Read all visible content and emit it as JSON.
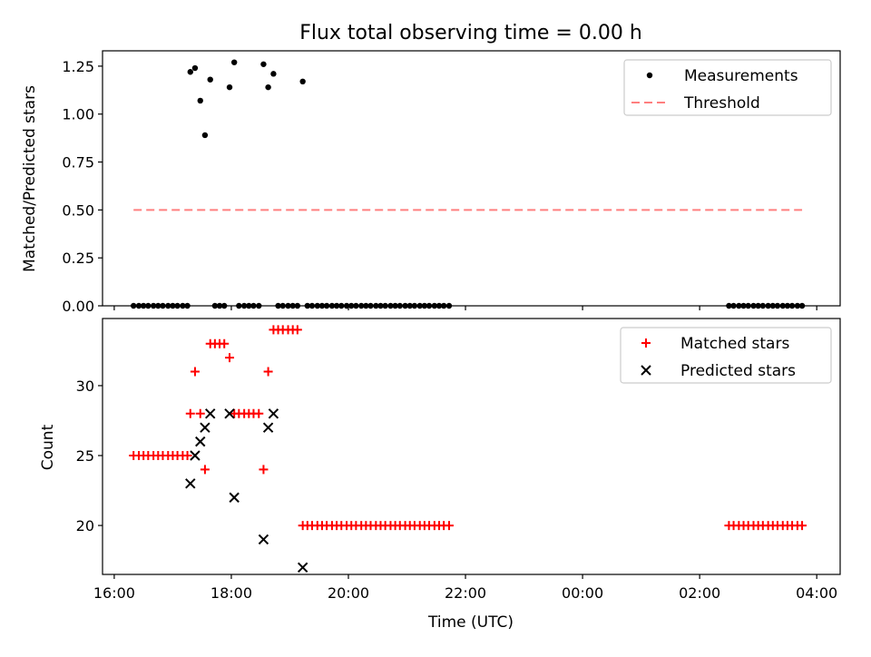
{
  "chart_data": [
    {
      "type": "scatter",
      "title": "Flux total observing time = 0.00 h",
      "xlabel": "",
      "ylabel": "Matched/Predicted stars",
      "x_unit": "hours since 16:00 UTC",
      "xlim": [
        -0.2,
        12.4
      ],
      "ylim": [
        0.0,
        1.33
      ],
      "yticks": [
        0.0,
        0.25,
        0.5,
        0.75,
        1.0,
        1.25
      ],
      "ytick_labels": [
        "0.00",
        "0.25",
        "0.50",
        "0.75",
        "1.00",
        "1.25"
      ],
      "legend": {
        "placement": "upper right",
        "entries": [
          {
            "label": "Measurements",
            "marker": "dot",
            "color": "#000000"
          },
          {
            "label": "Threshold",
            "marker": "dashed-line",
            "color": "#ff7f7f"
          }
        ]
      },
      "series": [
        {
          "name": "Measurements",
          "color": "#000000",
          "points": [
            [
              1.3,
              1.22
            ],
            [
              1.38,
              1.24
            ],
            [
              1.47,
              1.07
            ],
            [
              1.55,
              0.89
            ],
            [
              1.64,
              1.18
            ],
            [
              1.97,
              1.14
            ],
            [
              2.05,
              1.27
            ],
            [
              2.55,
              1.26
            ],
            [
              2.63,
              1.14
            ],
            [
              2.72,
              1.21
            ],
            [
              3.22,
              1.17
            ],
            [
              0.33,
              0.0
            ],
            [
              0.42,
              0.0
            ],
            [
              0.5,
              0.0
            ],
            [
              0.58,
              0.0
            ],
            [
              0.67,
              0.0
            ],
            [
              0.75,
              0.0
            ],
            [
              0.83,
              0.0
            ],
            [
              0.92,
              0.0
            ],
            [
              1.0,
              0.0
            ],
            [
              1.08,
              0.0
            ],
            [
              1.17,
              0.0
            ],
            [
              1.25,
              0.0
            ],
            [
              1.72,
              0.0
            ],
            [
              1.8,
              0.0
            ],
            [
              1.88,
              0.0
            ],
            [
              2.13,
              0.0
            ],
            [
              2.22,
              0.0
            ],
            [
              2.3,
              0.0
            ],
            [
              2.38,
              0.0
            ],
            [
              2.47,
              0.0
            ],
            [
              2.8,
              0.0
            ],
            [
              2.88,
              0.0
            ],
            [
              2.97,
              0.0
            ],
            [
              3.05,
              0.0
            ],
            [
              3.13,
              0.0
            ],
            [
              3.3,
              0.0
            ],
            [
              3.38,
              0.0
            ],
            [
              3.47,
              0.0
            ],
            [
              3.55,
              0.0
            ],
            [
              3.63,
              0.0
            ],
            [
              3.72,
              0.0
            ],
            [
              3.8,
              0.0
            ],
            [
              3.88,
              0.0
            ],
            [
              3.97,
              0.0
            ],
            [
              4.05,
              0.0
            ],
            [
              4.13,
              0.0
            ],
            [
              4.22,
              0.0
            ],
            [
              4.3,
              0.0
            ],
            [
              4.38,
              0.0
            ],
            [
              4.47,
              0.0
            ],
            [
              4.55,
              0.0
            ],
            [
              4.63,
              0.0
            ],
            [
              4.72,
              0.0
            ],
            [
              4.8,
              0.0
            ],
            [
              4.88,
              0.0
            ],
            [
              4.97,
              0.0
            ],
            [
              5.05,
              0.0
            ],
            [
              5.13,
              0.0
            ],
            [
              5.22,
              0.0
            ],
            [
              5.3,
              0.0
            ],
            [
              5.38,
              0.0
            ],
            [
              5.47,
              0.0
            ],
            [
              5.55,
              0.0
            ],
            [
              5.63,
              0.0
            ],
            [
              5.72,
              0.0
            ],
            [
              10.5,
              0.0
            ],
            [
              10.58,
              0.0
            ],
            [
              10.67,
              0.0
            ],
            [
              10.75,
              0.0
            ],
            [
              10.83,
              0.0
            ],
            [
              10.92,
              0.0
            ],
            [
              11.0,
              0.0
            ],
            [
              11.08,
              0.0
            ],
            [
              11.17,
              0.0
            ],
            [
              11.25,
              0.0
            ],
            [
              11.33,
              0.0
            ],
            [
              11.42,
              0.0
            ],
            [
              11.5,
              0.0
            ],
            [
              11.58,
              0.0
            ],
            [
              11.67,
              0.0
            ],
            [
              11.75,
              0.0
            ]
          ]
        },
        {
          "name": "Threshold",
          "color": "#ff7f7f",
          "line": [
            [
              0.33,
              0.5
            ],
            [
              11.75,
              0.5
            ]
          ]
        }
      ]
    },
    {
      "type": "scatter",
      "title": "",
      "xlabel": "Time (UTC)",
      "ylabel": "Count",
      "x_unit": "hours since 16:00 UTC",
      "xlim": [
        -0.2,
        12.4
      ],
      "ylim": [
        16.5,
        34.8
      ],
      "yticks": [
        20,
        25,
        30
      ],
      "ytick_labels": [
        "20",
        "25",
        "30"
      ],
      "xticks": [
        0,
        2,
        4,
        6,
        8,
        10,
        12
      ],
      "xtick_labels": [
        "16:00",
        "18:00",
        "20:00",
        "22:00",
        "00:00",
        "02:00",
        "04:00"
      ],
      "legend": {
        "placement": "upper right",
        "entries": [
          {
            "label": "Matched stars",
            "marker": "plus",
            "color": "#ff0000"
          },
          {
            "label": "Predicted stars",
            "marker": "x",
            "color": "#000000"
          }
        ]
      },
      "series": [
        {
          "name": "Matched stars",
          "color": "#ff0000",
          "points": [
            [
              0.33,
              25
            ],
            [
              0.42,
              25
            ],
            [
              0.5,
              25
            ],
            [
              0.58,
              25
            ],
            [
              0.67,
              25
            ],
            [
              0.75,
              25
            ],
            [
              0.83,
              25
            ],
            [
              0.92,
              25
            ],
            [
              1.0,
              25
            ],
            [
              1.08,
              25
            ],
            [
              1.17,
              25
            ],
            [
              1.25,
              25
            ],
            [
              1.3,
              28
            ],
            [
              1.38,
              31
            ],
            [
              1.47,
              28
            ],
            [
              1.55,
              24
            ],
            [
              1.64,
              33
            ],
            [
              1.72,
              33
            ],
            [
              1.8,
              33
            ],
            [
              1.88,
              33
            ],
            [
              1.97,
              32
            ],
            [
              2.05,
              28
            ],
            [
              2.13,
              28
            ],
            [
              2.22,
              28
            ],
            [
              2.3,
              28
            ],
            [
              2.38,
              28
            ],
            [
              2.47,
              28
            ],
            [
              2.55,
              24
            ],
            [
              2.63,
              31
            ],
            [
              2.72,
              34
            ],
            [
              2.8,
              34
            ],
            [
              2.88,
              34
            ],
            [
              2.97,
              34
            ],
            [
              3.05,
              34
            ],
            [
              3.13,
              34
            ],
            [
              3.22,
              20
            ],
            [
              3.3,
              20
            ],
            [
              3.38,
              20
            ],
            [
              3.47,
              20
            ],
            [
              3.55,
              20
            ],
            [
              3.63,
              20
            ],
            [
              3.72,
              20
            ],
            [
              3.8,
              20
            ],
            [
              3.88,
              20
            ],
            [
              3.97,
              20
            ],
            [
              4.05,
              20
            ],
            [
              4.13,
              20
            ],
            [
              4.22,
              20
            ],
            [
              4.3,
              20
            ],
            [
              4.38,
              20
            ],
            [
              4.47,
              20
            ],
            [
              4.55,
              20
            ],
            [
              4.63,
              20
            ],
            [
              4.72,
              20
            ],
            [
              4.8,
              20
            ],
            [
              4.88,
              20
            ],
            [
              4.97,
              20
            ],
            [
              5.05,
              20
            ],
            [
              5.13,
              20
            ],
            [
              5.22,
              20
            ],
            [
              5.3,
              20
            ],
            [
              5.38,
              20
            ],
            [
              5.47,
              20
            ],
            [
              5.55,
              20
            ],
            [
              5.63,
              20
            ],
            [
              5.72,
              20
            ],
            [
              10.5,
              20
            ],
            [
              10.58,
              20
            ],
            [
              10.67,
              20
            ],
            [
              10.75,
              20
            ],
            [
              10.83,
              20
            ],
            [
              10.92,
              20
            ],
            [
              11.0,
              20
            ],
            [
              11.08,
              20
            ],
            [
              11.17,
              20
            ],
            [
              11.25,
              20
            ],
            [
              11.33,
              20
            ],
            [
              11.42,
              20
            ],
            [
              11.5,
              20
            ],
            [
              11.58,
              20
            ],
            [
              11.67,
              20
            ],
            [
              11.75,
              20
            ]
          ]
        },
        {
          "name": "Predicted stars",
          "color": "#000000",
          "points": [
            [
              1.3,
              23
            ],
            [
              1.38,
              25
            ],
            [
              1.47,
              26
            ],
            [
              1.55,
              27
            ],
            [
              1.64,
              28
            ],
            [
              1.97,
              28
            ],
            [
              2.05,
              22
            ],
            [
              2.55,
              19
            ],
            [
              2.63,
              27
            ],
            [
              2.72,
              28
            ],
            [
              3.22,
              17
            ]
          ]
        }
      ]
    }
  ]
}
